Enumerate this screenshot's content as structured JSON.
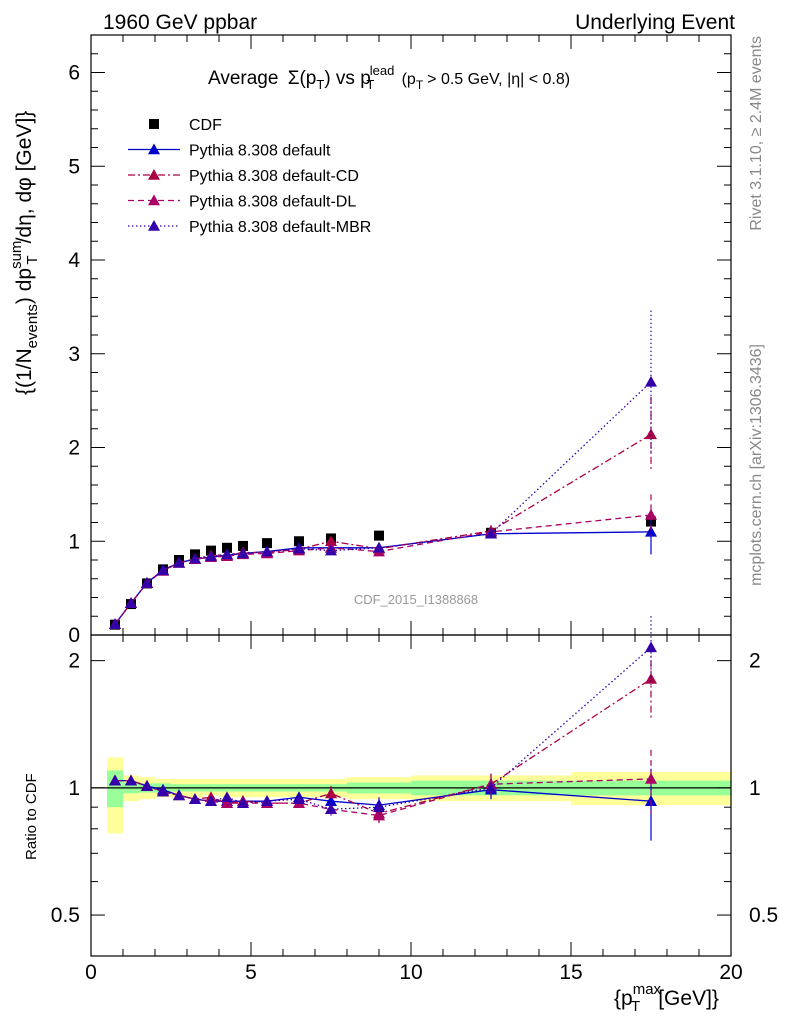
{
  "header": {
    "left": "1960 GeV ppbar",
    "right": "Underlying Event"
  },
  "side_labels": {
    "rivet": "Rivet 3.1.10, ≥ 2.4M events",
    "mcplots": "mcplots.cern.ch [arXiv:1306.3436]"
  },
  "watermark": "CDF_2015_I1388868",
  "colors": {
    "cdf": "#000000",
    "default": "#0000cc",
    "default_cd": "#aa0044",
    "default_dl": "#aa0066",
    "default_mbr": "#3300aa",
    "band_yellow": "#ffff99",
    "band_green": "#99ff99"
  },
  "chart_data": [
    {
      "panel": "main",
      "type": "scatter",
      "title_parts": {
        "t1": "Average",
        "t2": "Σ(p",
        "t2sub": "T",
        "t3": ") vs p",
        "t3sup": "lead",
        "t3sub": "T",
        "t4": "(p",
        "t4sub": "T",
        "t5": "> 0.5 GeV, |η| < 0.8)"
      },
      "ylabel_parts": {
        "p1": "{(1/N",
        "p1sub": "events",
        "p2": ") dp",
        "p2sup": "sum",
        "p2sub": "T",
        "p3": "/dη, dφ [GeV]}"
      },
      "xlim": [
        0,
        20
      ],
      "ylim": [
        0,
        6.4
      ],
      "yticks": [
        "0",
        "1",
        "2",
        "3",
        "4",
        "5",
        "6"
      ],
      "legend_position": "top-left",
      "series": [
        {
          "name": "CDF",
          "style": "data",
          "x": [
            0.75,
            1.25,
            1.75,
            2.25,
            2.75,
            3.25,
            3.75,
            4.25,
            4.75,
            5.5,
            6.5,
            7.5,
            9.0,
            12.5,
            17.5
          ],
          "y": [
            0.11,
            0.33,
            0.55,
            0.7,
            0.8,
            0.86,
            0.9,
            0.93,
            0.95,
            0.98,
            1.0,
            1.03,
            1.06,
            1.09,
            1.21
          ]
        },
        {
          "name": "Pythia 8.308 default",
          "style": "solid",
          "x": [
            0.75,
            1.25,
            1.75,
            2.25,
            2.75,
            3.25,
            3.75,
            4.25,
            4.75,
            5.5,
            6.5,
            7.5,
            9.0,
            12.5,
            17.5
          ],
          "y": [
            0.115,
            0.34,
            0.555,
            0.695,
            0.77,
            0.81,
            0.83,
            0.85,
            0.87,
            0.89,
            0.93,
            0.93,
            0.93,
            1.08,
            1.1
          ],
          "yerr": [
            0.005,
            0.005,
            0.005,
            0.01,
            0.01,
            0.01,
            0.01,
            0.01,
            0.01,
            0.01,
            0.02,
            0.03,
            0.04,
            0.05,
            0.24
          ]
        },
        {
          "name": "Pythia 8.308 default-CD",
          "style": "dashdot",
          "x": [
            0.75,
            1.25,
            1.75,
            2.25,
            2.75,
            3.25,
            3.75,
            4.25,
            4.75,
            5.5,
            6.5,
            7.5,
            9.0,
            12.5,
            17.5
          ],
          "y": [
            0.115,
            0.34,
            0.555,
            0.685,
            0.77,
            0.81,
            0.85,
            0.855,
            0.88,
            0.88,
            0.915,
            1.0,
            0.92,
            1.11,
            2.14
          ],
          "yerr": [
            0.005,
            0.005,
            0.005,
            0.01,
            0.01,
            0.01,
            0.01,
            0.01,
            0.01,
            0.01,
            0.02,
            0.04,
            0.04,
            0.06,
            0.4
          ]
        },
        {
          "name": "Pythia 8.308 default-DL",
          "style": "dashed",
          "x": [
            0.75,
            1.25,
            1.75,
            2.25,
            2.75,
            3.25,
            3.75,
            4.25,
            4.75,
            5.5,
            6.5,
            7.5,
            9.0,
            12.5,
            17.5
          ],
          "y": [
            0.115,
            0.34,
            0.555,
            0.685,
            0.77,
            0.81,
            0.83,
            0.84,
            0.86,
            0.87,
            0.9,
            0.93,
            0.89,
            1.1,
            1.28
          ],
          "yerr": [
            0.005,
            0.005,
            0.005,
            0.01,
            0.01,
            0.01,
            0.01,
            0.01,
            0.01,
            0.01,
            0.02,
            0.03,
            0.04,
            0.06,
            0.22
          ]
        },
        {
          "name": "Pythia 8.308 default-MBR",
          "style": "dotted",
          "x": [
            0.75,
            1.25,
            1.75,
            2.25,
            2.75,
            3.25,
            3.75,
            4.25,
            4.75,
            5.5,
            6.5,
            7.5,
            9.0,
            12.5,
            17.5
          ],
          "y": [
            0.115,
            0.34,
            0.555,
            0.69,
            0.77,
            0.815,
            0.84,
            0.86,
            0.87,
            0.89,
            0.92,
            0.9,
            0.93,
            1.08,
            2.7
          ],
          "yerr": [
            0.005,
            0.005,
            0.005,
            0.01,
            0.01,
            0.01,
            0.01,
            0.01,
            0.01,
            0.01,
            0.02,
            0.03,
            0.04,
            0.05,
            0.76
          ]
        }
      ]
    },
    {
      "panel": "ratio",
      "type": "scatter",
      "ylabel": "Ratio to CDF",
      "xlabel_parts": {
        "p1": "{p",
        "p1sup": "max",
        "p1sub": "T",
        "p2": "[GeV]}"
      },
      "xlim": [
        0,
        20
      ],
      "ylim": [
        0.4,
        2.3
      ],
      "xticks": [
        "0",
        "5",
        "10",
        "15",
        "20"
      ],
      "yticks": [
        "0.5",
        "1",
        "2"
      ],
      "bands": {
        "edges": [
          0.5,
          1.0,
          1.5,
          2.0,
          2.5,
          3.0,
          3.5,
          4.0,
          5.0,
          6.0,
          7.0,
          8.0,
          10.0,
          15.0,
          20.0
        ],
        "yellow": [
          [
            0.78,
            1.18
          ],
          [
            0.93,
            1.07
          ],
          [
            0.94,
            1.06
          ],
          [
            0.95,
            1.05
          ],
          [
            0.95,
            1.05
          ],
          [
            0.95,
            1.05
          ],
          [
            0.96,
            1.05
          ],
          [
            0.95,
            1.05
          ],
          [
            0.95,
            1.05
          ],
          [
            0.95,
            1.05
          ],
          [
            0.95,
            1.05
          ],
          [
            0.94,
            1.06
          ],
          [
            0.93,
            1.07
          ],
          [
            0.91,
            1.09
          ]
        ],
        "green": [
          [
            0.9,
            1.1
          ],
          [
            0.97,
            1.03
          ],
          [
            0.975,
            1.025
          ],
          [
            0.975,
            1.025
          ],
          [
            0.98,
            1.02
          ],
          [
            0.98,
            1.02
          ],
          [
            0.98,
            1.02
          ],
          [
            0.98,
            1.02
          ],
          [
            0.98,
            1.02
          ],
          [
            0.98,
            1.02
          ],
          [
            0.98,
            1.02
          ],
          [
            0.97,
            1.03
          ],
          [
            0.96,
            1.04
          ],
          [
            0.96,
            1.04
          ]
        ]
      },
      "series": [
        {
          "name": "Pythia 8.308 default",
          "style": "solid",
          "x": [
            0.75,
            1.25,
            1.75,
            2.25,
            2.75,
            3.25,
            3.75,
            4.25,
            4.75,
            5.5,
            6.5,
            7.5,
            9.0,
            12.5,
            17.5
          ],
          "y": [
            1.04,
            1.04,
            1.01,
            0.99,
            0.96,
            0.94,
            0.93,
            0.93,
            0.93,
            0.93,
            0.95,
            0.93,
            0.91,
            0.99,
            0.93
          ],
          "yerr": [
            0.01,
            0.01,
            0.01,
            0.01,
            0.01,
            0.01,
            0.01,
            0.01,
            0.01,
            0.01,
            0.02,
            0.03,
            0.04,
            0.05,
            0.18
          ]
        },
        {
          "name": "Pythia 8.308 default-CD",
          "style": "dashdot",
          "x": [
            0.75,
            1.25,
            1.75,
            2.25,
            2.75,
            3.25,
            3.75,
            4.25,
            4.75,
            5.5,
            6.5,
            7.5,
            9.0,
            12.5,
            17.5
          ],
          "y": [
            1.04,
            1.04,
            1.01,
            0.98,
            0.96,
            0.94,
            0.95,
            0.92,
            0.93,
            0.92,
            0.92,
            0.97,
            0.87,
            1.02,
            1.81
          ],
          "yerr": [
            0.01,
            0.01,
            0.01,
            0.01,
            0.01,
            0.01,
            0.01,
            0.01,
            0.01,
            0.01,
            0.02,
            0.04,
            0.04,
            0.06,
            0.36
          ]
        },
        {
          "name": "Pythia 8.308 default-DL",
          "style": "dashed",
          "x": [
            0.75,
            1.25,
            1.75,
            2.25,
            2.75,
            3.25,
            3.75,
            4.25,
            4.75,
            5.5,
            6.5,
            7.5,
            9.0,
            12.5,
            17.5
          ],
          "y": [
            1.04,
            1.04,
            1.01,
            0.98,
            0.96,
            0.94,
            0.93,
            0.92,
            0.92,
            0.92,
            0.92,
            0.89,
            0.86,
            1.02,
            1.05
          ],
          "yerr": [
            0.01,
            0.01,
            0.01,
            0.01,
            0.01,
            0.01,
            0.01,
            0.01,
            0.01,
            0.01,
            0.02,
            0.03,
            0.04,
            0.06,
            0.18
          ]
        },
        {
          "name": "Pythia 8.308 default-MBR",
          "style": "dotted",
          "x": [
            0.75,
            1.25,
            1.75,
            2.25,
            2.75,
            3.25,
            3.75,
            4.25,
            4.75,
            5.5,
            6.5,
            7.5,
            9.0,
            12.5,
            17.5
          ],
          "y": [
            1.04,
            1.04,
            1.01,
            0.98,
            0.96,
            0.94,
            0.93,
            0.95,
            0.92,
            0.93,
            0.94,
            0.89,
            0.9,
            1.0,
            2.15
          ],
          "yerr": [
            0.01,
            0.01,
            0.01,
            0.01,
            0.01,
            0.01,
            0.01,
            0.01,
            0.01,
            0.01,
            0.02,
            0.03,
            0.04,
            0.05,
            0.4
          ]
        }
      ]
    }
  ]
}
